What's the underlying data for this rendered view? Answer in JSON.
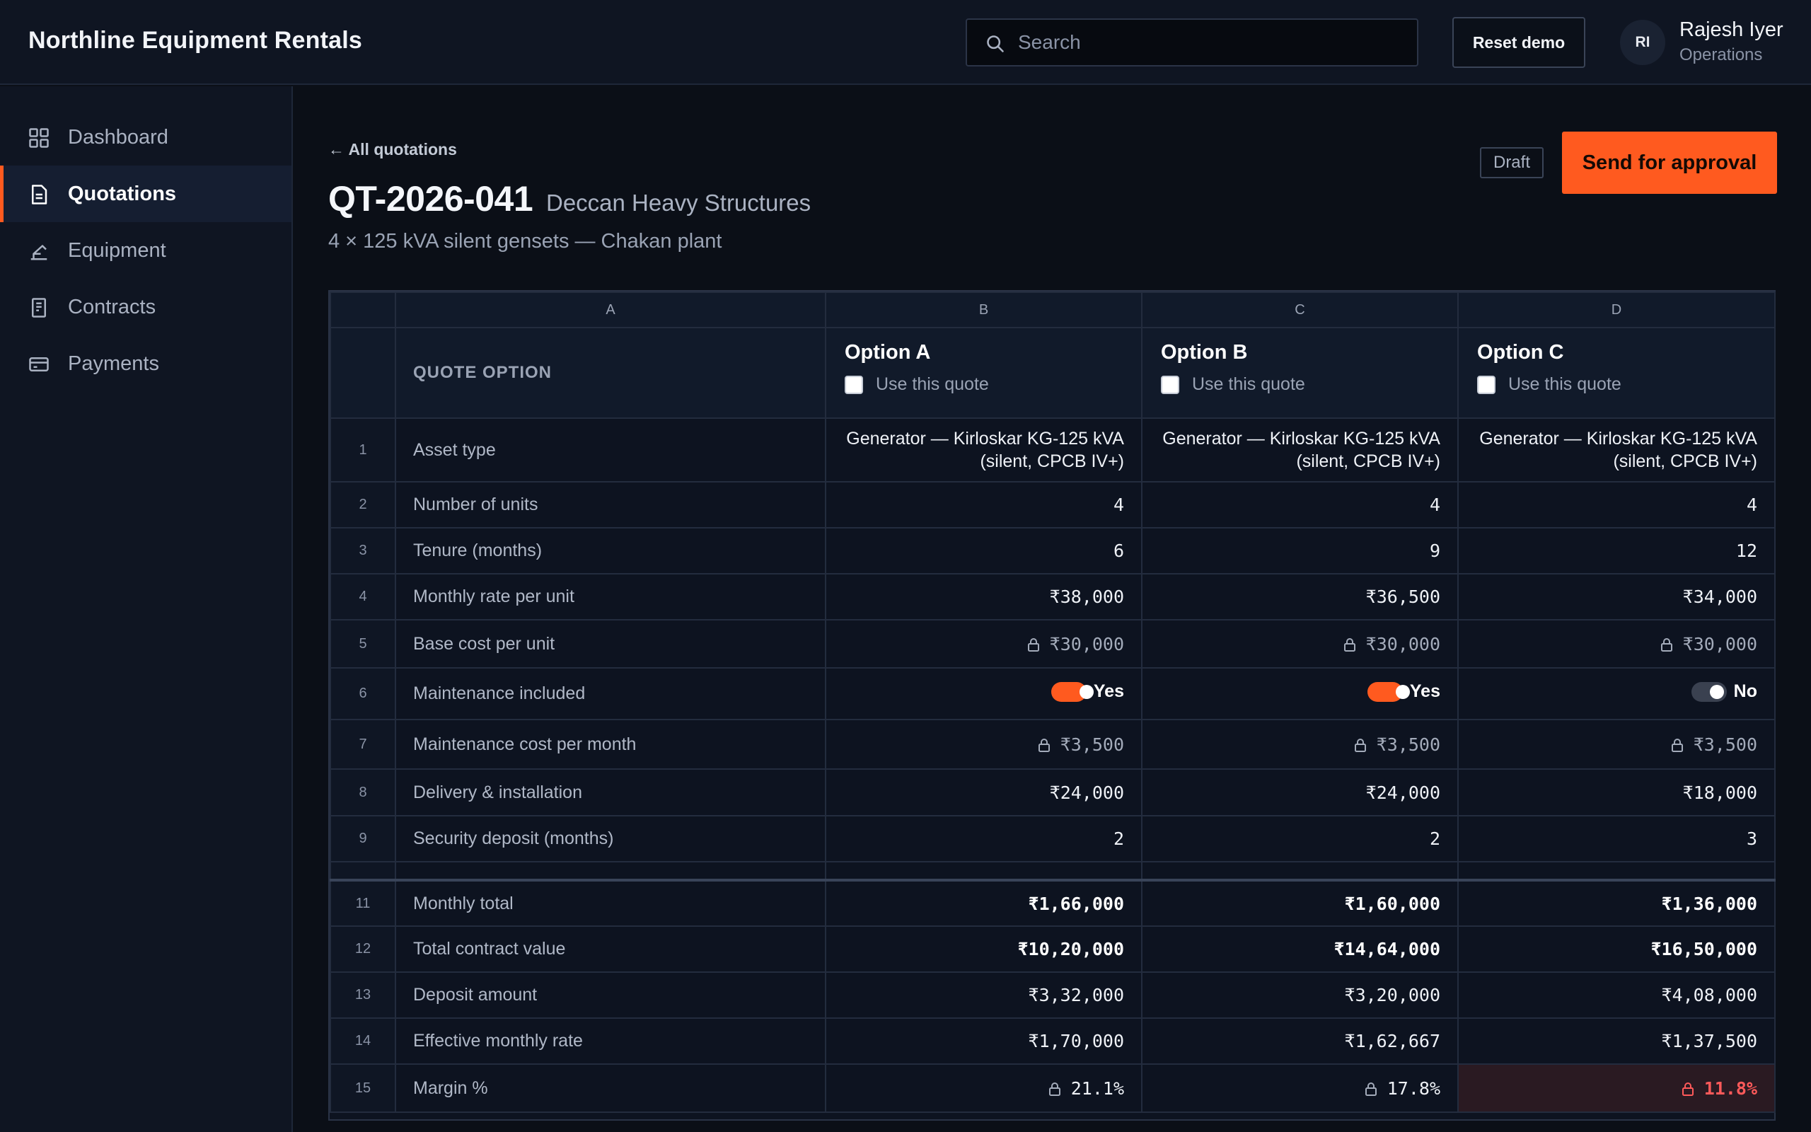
{
  "app": {
    "title": "Northline Equipment Rentals"
  },
  "search": {
    "placeholder": "Search"
  },
  "header": {
    "reset_label": "Reset demo"
  },
  "user": {
    "initials": "RI",
    "name": "Rajesh Iyer",
    "role": "Operations"
  },
  "sidebar": {
    "items": [
      {
        "label": "Dashboard",
        "icon": "grid-icon"
      },
      {
        "label": "Quotations",
        "icon": "document-icon",
        "active": true
      },
      {
        "label": "Equipment",
        "icon": "crane-icon"
      },
      {
        "label": "Contracts",
        "icon": "contract-icon"
      },
      {
        "label": "Payments",
        "icon": "card-icon"
      }
    ]
  },
  "quote": {
    "back_label": "← All quotations",
    "id": "QT-2026-041",
    "client": "Deccan Heavy Structures",
    "subtitle": "4 × 125 kVA silent gensets — Chakan plant",
    "status": "Draft",
    "send_label": "Send for approval"
  },
  "sheet": {
    "columns": [
      "A",
      "B",
      "C",
      "D"
    ],
    "header_label": "QUOTE OPTION",
    "use_label": "Use this quote",
    "options": [
      "Option A",
      "Option B",
      "Option C"
    ],
    "rows": [
      {
        "num": "1",
        "label": "Asset type",
        "values": [
          "Generator — Kirloskar KG-125 kVA (silent, CPCB IV+)",
          "Generator — Kirloskar KG-125 kVA (silent, CPCB IV+)",
          "Generator — Kirloskar KG-125 kVA (silent, CPCB IV+)"
        ]
      },
      {
        "num": "2",
        "label": "Number of units",
        "values": [
          "4",
          "4",
          "4"
        ]
      },
      {
        "num": "3",
        "label": "Tenure (months)",
        "values": [
          "6",
          "9",
          "12"
        ]
      },
      {
        "num": "4",
        "label": "Monthly rate per unit",
        "values": [
          "₹38,000",
          "₹36,500",
          "₹34,000"
        ]
      },
      {
        "num": "5",
        "label": "Base cost per unit",
        "values": [
          "₹30,000",
          "₹30,000",
          "₹30,000"
        ]
      },
      {
        "num": "6",
        "label": "Maintenance included",
        "values": [
          "Yes",
          "Yes",
          "No"
        ]
      },
      {
        "num": "7",
        "label": "Maintenance cost per month",
        "values": [
          "₹3,500",
          "₹3,500",
          "₹3,500"
        ]
      },
      {
        "num": "8",
        "label": "Delivery & installation",
        "values": [
          "₹24,000",
          "₹24,000",
          "₹18,000"
        ]
      },
      {
        "num": "9",
        "label": "Security deposit (months)",
        "values": [
          "2",
          "2",
          "3"
        ]
      },
      {
        "num": "11",
        "label": "Monthly total",
        "values": [
          "₹1,66,000",
          "₹1,60,000",
          "₹1,36,000"
        ]
      },
      {
        "num": "12",
        "label": "Total contract value",
        "values": [
          "₹10,20,000",
          "₹14,64,000",
          "₹16,50,000"
        ]
      },
      {
        "num": "13",
        "label": "Deposit amount",
        "values": [
          "₹3,32,000",
          "₹3,20,000",
          "₹4,08,000"
        ]
      },
      {
        "num": "14",
        "label": "Effective monthly rate",
        "values": [
          "₹1,70,000",
          "₹1,62,667",
          "₹1,37,500"
        ]
      },
      {
        "num": "15",
        "label": "Margin %",
        "values": [
          "21.1%",
          "17.8%",
          "11.8%"
        ]
      }
    ]
  },
  "colors": {
    "accent": "#ff5a1f",
    "danger": "#ff5a5a",
    "background": "#0b0f17"
  }
}
